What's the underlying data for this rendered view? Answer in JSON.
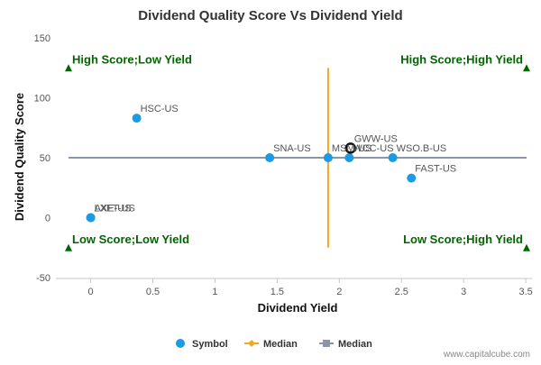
{
  "chart_data": {
    "type": "scatter",
    "title": "Dividend Quality Score Vs Dividend Yield",
    "xlabel": "Dividend Yield",
    "ylabel": "Dividend Quality Score",
    "xlim": [
      -0.28,
      3.55
    ],
    "ylim": [
      -50,
      150
    ],
    "x_ticks": [
      "0",
      "0.5",
      "1",
      "1.5",
      "2",
      "2.5",
      "3",
      "3.5"
    ],
    "y_ticks": [
      "-50",
      "0",
      "50",
      "100",
      "150"
    ],
    "grid": false,
    "points": [
      {
        "label": "HSC-US",
        "x": 0.37,
        "y": 83
      },
      {
        "label": "LXFT-US",
        "x": 0.0,
        "y": 0
      },
      {
        "label": "AXE-US",
        "x": 0.0,
        "y": 0
      },
      {
        "label": "SNA-US",
        "x": 1.44,
        "y": 50
      },
      {
        "label": "MSM-US",
        "x": 1.91,
        "y": 50
      },
      {
        "label": "WCC-US",
        "x": 2.08,
        "y": 50
      },
      {
        "label": "WSO.B-US",
        "x": 2.43,
        "y": 50
      },
      {
        "label": "GWW-US",
        "x": 2.09,
        "y": 58,
        "highlight": true
      },
      {
        "label": "FAST-US",
        "x": 2.58,
        "y": 33
      }
    ],
    "median_x": 1.91,
    "median_y": 50,
    "median_x_range": [
      -25,
      125
    ],
    "quadrants": {
      "top_left": "High Score;Low Yield",
      "top_right": "High Score;High Yield",
      "bottom_left": "Low Score;Low Yield",
      "bottom_right": "Low Score;High Yield"
    },
    "legend": {
      "placement": "bottom-center",
      "items": [
        {
          "name": "Symbol",
          "marker": "circle",
          "color": "#1a9be6"
        },
        {
          "name": "Median",
          "marker": "diamond-line",
          "color": "#f5a623"
        },
        {
          "name": "Median",
          "marker": "square-line",
          "color": "#8c94a8"
        }
      ]
    },
    "colors": {
      "points": "#1a9be6",
      "median_x_line": "#f5a623",
      "median_y_line": "#8c94a8",
      "quadrant_text": "#006600",
      "highlight_ring": "#111111"
    }
  },
  "credit": "www.capitalcube.com"
}
